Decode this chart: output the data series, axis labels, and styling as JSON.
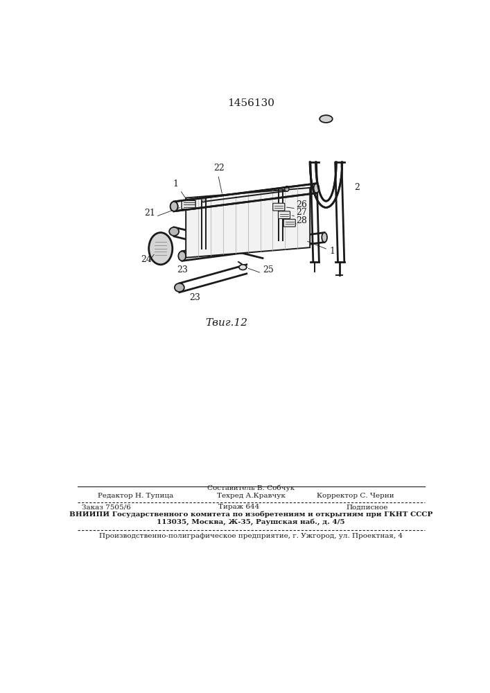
{
  "patent_number": "1456130",
  "fig_label": "Τвиг.12",
  "background_color": "#ffffff",
  "text_color": "#1a1a1a",
  "line_color": "#1a1a1a",
  "line1_editor": "Редактор Н. Тупица",
  "line1_center": "Составитель В. Собчук",
  "line1_right": "Корректор С. Черни",
  "line2_center": "Техред А.Кравчук",
  "line3_left": "Заказ 7505/6",
  "line3_center": "Тираж 644",
  "line3_right": "Подписное",
  "line4": "ВНИИПИ Государственного комитета по изобретениям и открытиям при ГКНТ СССР",
  "line5": "113035, Москва, Ж-35, Раушская наб., д. 4/5",
  "line6": "Производственно-полиграфическое предприятие, г. Ужгород, ул. Проектная, 4"
}
